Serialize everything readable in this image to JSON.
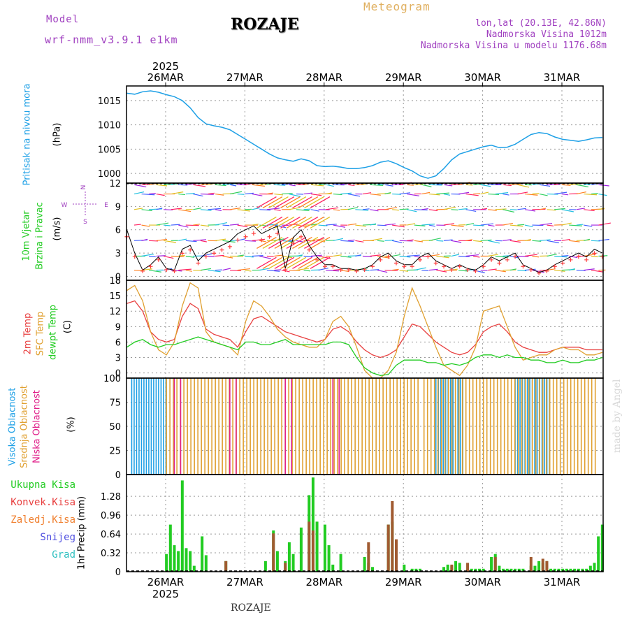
{
  "header": {
    "model_label": "Model",
    "model_name": "wrf-nmm_v3.9.1 e1km",
    "station": "ROZAJE",
    "product": "Meteogram",
    "lonlat": "lon,lat (20.13E, 42.86N)",
    "alt": "Nadmorska Visina 1012m",
    "alt_model": "Nadmorska Visina u modelu 1176.68m",
    "footer_station": "ROZAJE",
    "credit": "made by Angel"
  },
  "colors": {
    "pressure": "#1ea0e6",
    "wind_label": "#22cc22",
    "temp2m": "#e84040",
    "sfc": "#e0a030",
    "dew": "#22cc22",
    "cloud_high": "#1ea0e6",
    "cloud_mid": "#e0a030",
    "cloud_low": "#e0208a",
    "precip_total": "#22cc22",
    "precip_conv": "#a05a30",
    "header_purple": "#a040c0",
    "header_gold": "#e0b060"
  },
  "labels": {
    "year": "2025",
    "dates": [
      "26MAR",
      "27MAR",
      "28MAR",
      "29MAR",
      "30MAR",
      "31MAR"
    ],
    "pressure_title": "Pritisak na nivou mora",
    "pressure_unit": "(hPa)",
    "wind_title1": "10m Vjetar",
    "wind_title2": "Brzina i Pravac",
    "wind_unit": "(m/s)",
    "compass_n": "N",
    "compass_w": "W",
    "compass_e": "E",
    "compass_s": "S",
    "temp_title1": "2m Temp",
    "temp_title2": "SFC Temp",
    "temp_title3": "dewpt Temp",
    "temp_unit": "(C)",
    "cloud_title1": "Visoka Oblacnost",
    "cloud_title2": "Srednja Oblacnost",
    "cloud_title3": "Niska Oblacnost",
    "cloud_unit": "(%)",
    "precip_title": "1hr Precip (mm)",
    "legend": [
      "Ukupna Kisa",
      "Konvek.Kisa",
      "Zaledj.Kisa",
      "Snijeg",
      "Grad"
    ]
  },
  "chart_data": [
    {
      "type": "line",
      "name": "pressure",
      "ylim": [
        998,
        1018
      ],
      "yticks": [
        1000,
        1005,
        1010,
        1015
      ],
      "x": [
        0,
        0.1,
        0.2,
        0.3,
        0.4,
        0.5,
        0.6,
        0.7,
        0.8,
        0.9,
        1,
        1.1,
        1.2,
        1.3,
        1.4,
        1.5,
        1.6,
        1.7,
        1.8,
        1.9,
        2,
        2.1,
        2.2,
        2.3,
        2.4,
        2.5,
        2.6,
        2.7,
        2.8,
        2.9,
        3,
        3.1,
        3.2,
        3.3,
        3.4,
        3.5,
        3.6,
        3.7,
        3.8,
        3.9,
        4,
        4.1,
        4.2,
        4.3,
        4.4,
        4.5,
        4.6,
        4.7,
        4.8,
        4.9,
        5,
        5.1,
        5.2,
        5.3,
        5.4,
        5.5,
        5.6,
        5.7,
        5.8,
        5.9,
        6
      ],
      "values": [
        1016.5,
        1016.3,
        1016.8,
        1017.0,
        1016.7,
        1016.2,
        1015.8,
        1015.0,
        1013.5,
        1011.5,
        1010.2,
        1009.8,
        1009.5,
        1009.0,
        1008.0,
        1007.0,
        1006.0,
        1005.0,
        1004.0,
        1003.2,
        1002.8,
        1002.5,
        1003.0,
        1002.6,
        1001.6,
        1001.4,
        1001.5,
        1001.3,
        1001.0,
        1001.0,
        1001.2,
        1001.6,
        1002.3,
        1002.6,
        1002.0,
        1001.2,
        1000.5,
        999.5,
        999.0,
        999.5,
        1001.0,
        1002.8,
        1004.0,
        1004.5,
        1005.0,
        1005.5,
        1005.8,
        1005.3,
        1005.4,
        1006.0,
        1007.0,
        1008.0,
        1008.4,
        1008.2,
        1007.5,
        1007.0,
        1006.8,
        1006.6,
        1006.9,
        1007.3,
        1007.4
      ]
    },
    {
      "type": "line",
      "name": "wind",
      "ylim": [
        -0.5,
        12
      ],
      "yticks": [
        0,
        3,
        6,
        9,
        12
      ],
      "x": [
        0,
        0.1,
        0.2,
        0.3,
        0.4,
        0.5,
        0.6,
        0.7,
        0.8,
        0.9,
        1,
        1.1,
        1.2,
        1.3,
        1.4,
        1.5,
        1.6,
        1.7,
        1.8,
        1.9,
        2,
        2.1,
        2.2,
        2.3,
        2.4,
        2.5,
        2.6,
        2.7,
        2.8,
        2.9,
        3,
        3.1,
        3.2,
        3.3,
        3.4,
        3.5,
        3.6,
        3.7,
        3.8,
        3.9,
        4,
        4.1,
        4.2,
        4.3,
        4.4,
        4.5,
        4.6,
        4.7,
        4.8,
        4.9,
        5,
        5.1,
        5.2,
        5.3,
        5.4,
        5.5,
        5.6,
        5.7,
        5.8,
        5.9,
        6
      ],
      "values": [
        6.0,
        3.0,
        0.8,
        1.5,
        2.5,
        1.0,
        0.8,
        3.5,
        4.0,
        2.0,
        3.0,
        3.5,
        4.0,
        4.5,
        5.5,
        6.0,
        6.5,
        5.5,
        6.0,
        6.5,
        1.0,
        5.0,
        6.0,
        4.0,
        2.5,
        1.5,
        1.5,
        1.0,
        1.0,
        0.8,
        1.0,
        1.5,
        2.5,
        3.0,
        2.0,
        1.5,
        1.5,
        2.5,
        3.0,
        2.0,
        1.5,
        1.0,
        1.5,
        1.0,
        0.8,
        1.5,
        2.5,
        2.0,
        2.5,
        3.0,
        1.5,
        1.0,
        0.5,
        0.8,
        1.5,
        2.0,
        2.5,
        3.0,
        2.5,
        3.5,
        3.0
      ]
    },
    {
      "type": "line",
      "name": "temperature",
      "ylim": [
        -1,
        18
      ],
      "yticks": [
        0,
        3,
        6,
        9,
        12,
        15,
        18
      ],
      "x": [
        0,
        0.1,
        0.2,
        0.3,
        0.4,
        0.5,
        0.6,
        0.7,
        0.8,
        0.9,
        1,
        1.1,
        1.2,
        1.3,
        1.4,
        1.5,
        1.6,
        1.7,
        1.8,
        1.9,
        2,
        2.1,
        2.2,
        2.3,
        2.4,
        2.5,
        2.6,
        2.7,
        2.8,
        2.9,
        3,
        3.1,
        3.2,
        3.3,
        3.4,
        3.5,
        3.6,
        3.7,
        3.8,
        3.9,
        4,
        4.1,
        4.2,
        4.3,
        4.4,
        4.5,
        4.6,
        4.7,
        4.8,
        4.9,
        5,
        5.1,
        5.2,
        5.3,
        5.4,
        5.5,
        5.6,
        5.7,
        5.8,
        5.9,
        6
      ],
      "series": [
        {
          "name": "2m Temp",
          "color_key": "temp2m",
          "values": [
            13.5,
            14.0,
            12.0,
            8.0,
            6.5,
            6.0,
            6.5,
            11.0,
            13.5,
            12.5,
            8.5,
            7.5,
            7.0,
            6.5,
            5.0,
            8.0,
            10.5,
            11.0,
            10.0,
            9.0,
            8.0,
            7.5,
            7.0,
            6.5,
            6.0,
            6.5,
            8.5,
            9.0,
            8.0,
            6.0,
            4.5,
            3.5,
            3.0,
            3.5,
            4.5,
            7.0,
            9.5,
            9.0,
            7.5,
            6.0,
            5.0,
            4.0,
            3.5,
            4.0,
            5.5,
            8.0,
            9.0,
            9.5,
            8.0,
            6.0,
            5.0,
            4.5,
            4.0,
            4.0,
            4.5,
            5.0,
            5.0,
            5.0,
            4.5,
            4.5,
            4.5
          ]
        },
        {
          "name": "SFC Temp",
          "color_key": "sfc",
          "values": [
            16.0,
            17.0,
            14.0,
            8.0,
            4.5,
            3.5,
            6.0,
            13.0,
            17.5,
            16.5,
            8.0,
            6.0,
            5.5,
            5.0,
            3.5,
            10.0,
            14.0,
            13.0,
            11.0,
            8.5,
            7.0,
            6.0,
            5.5,
            5.0,
            5.0,
            6.5,
            10.0,
            11.0,
            9.0,
            5.0,
            0.5,
            -1.0,
            -1.0,
            0.5,
            4.0,
            11.0,
            16.5,
            13.0,
            9.0,
            5.0,
            1.5,
            0.5,
            -0.5,
            1.5,
            5.0,
            12.0,
            12.5,
            13.0,
            9.0,
            5.0,
            2.5,
            3.0,
            3.5,
            3.5,
            4.5,
            5.0,
            4.5,
            4.5,
            3.5,
            3.5,
            4.0
          ]
        },
        {
          "name": "dewpt Temp",
          "color_key": "dew",
          "values": [
            5.0,
            6.0,
            6.5,
            5.5,
            5.0,
            5.5,
            5.5,
            6.0,
            6.5,
            7.0,
            6.5,
            6.0,
            5.5,
            5.0,
            4.5,
            6.0,
            6.0,
            5.5,
            5.5,
            6.0,
            6.5,
            5.5,
            5.5,
            5.5,
            5.5,
            5.5,
            6.0,
            6.0,
            5.5,
            3.0,
            1.0,
            0.0,
            -0.5,
            -0.3,
            1.5,
            2.5,
            2.5,
            2.5,
            2.0,
            2.0,
            1.5,
            1.8,
            1.5,
            2.0,
            3.0,
            3.5,
            3.5,
            3.0,
            3.5,
            3.0,
            3.0,
            2.5,
            2.5,
            2.0,
            2.0,
            2.5,
            2.0,
            2.0,
            2.5,
            2.5,
            3.0
          ]
        }
      ]
    },
    {
      "type": "bar",
      "name": "cloud_cover",
      "ylim": [
        0,
        100
      ],
      "yticks": [
        0,
        25,
        50,
        75,
        100
      ],
      "series": [
        {
          "name": "Visoka Oblacnost",
          "color_key": "cloud_high",
          "segments": [
            [
              0.0,
              0.5
            ],
            [
              3.9,
              4.25
            ],
            [
              4.9,
              5.35
            ]
          ]
        },
        {
          "name": "Srednja Oblacnost",
          "color_key": "cloud_mid",
          "segments": [
            [
              0.5,
              3.7
            ],
            [
              3.75,
              5.95
            ]
          ]
        },
        {
          "name": "Niska Oblacnost",
          "color_key": "cloud_low",
          "segments": [
            [
              0.6,
              0.7
            ],
            [
              1.3,
              1.4
            ],
            [
              2.0,
              2.1
            ],
            [
              2.6,
              2.7
            ]
          ]
        }
      ]
    },
    {
      "type": "bar",
      "name": "precip",
      "ylim": [
        0,
        1.65
      ],
      "yticks": [
        0,
        0.32,
        0.64,
        0.96,
        1.28
      ],
      "series": [
        {
          "name": "Ukupna Kisa",
          "color_key": "precip_total",
          "x": [
            0.5,
            0.55,
            0.6,
            0.65,
            0.7,
            0.75,
            0.8,
            0.85,
            0.95,
            1.0,
            1.25,
            1.75,
            1.85,
            1.9,
            2.0,
            2.05,
            2.1,
            2.2,
            2.3,
            2.35,
            2.4,
            2.5,
            2.55,
            2.6,
            2.7,
            3.0,
            3.05,
            3.1,
            3.3,
            3.35,
            3.4,
            3.5,
            3.6,
            3.65,
            3.7,
            4.0,
            4.05,
            4.1,
            4.15,
            4.2,
            4.3,
            4.35,
            4.4,
            4.45,
            4.5,
            4.6,
            4.65,
            4.7,
            4.75,
            4.8,
            4.85,
            4.9,
            4.95,
            5.0,
            5.1,
            5.15,
            5.2,
            5.25,
            5.3,
            5.35,
            5.4,
            5.45,
            5.5,
            5.55,
            5.6,
            5.65,
            5.7,
            5.75,
            5.8,
            5.85,
            5.9,
            5.95,
            6.0
          ],
          "values": [
            0.3,
            0.8,
            0.45,
            0.35,
            1.55,
            0.4,
            0.35,
            0.1,
            0.6,
            0.28,
            0.18,
            0.18,
            0.7,
            0.35,
            0.18,
            0.5,
            0.3,
            0.75,
            1.3,
            1.6,
            0.85,
            0.8,
            0.45,
            0.12,
            0.3,
            0.25,
            0.15,
            0.08,
            0.8,
            0.85,
            0.1,
            0.12,
            0.05,
            0.05,
            0.05,
            0.08,
            0.12,
            0.1,
            0.18,
            0.15,
            0.05,
            0.05,
            0.05,
            0.05,
            0.05,
            0.25,
            0.3,
            0.1,
            0.05,
            0.05,
            0.05,
            0.05,
            0.05,
            0.05,
            0.1,
            0.1,
            0.18,
            0.15,
            0.18,
            0.05,
            0.05,
            0.05,
            0.05,
            0.05,
            0.05,
            0.05,
            0.05,
            0.05,
            0.05,
            0.1,
            0.15,
            0.6,
            0.8
          ]
        },
        {
          "name": "Konvek.Kisa",
          "color_key": "precip_conv",
          "x": [
            1.25,
            1.85,
            2.0,
            2.3,
            2.35,
            3.05,
            3.3,
            3.35,
            3.4,
            4.1,
            4.3,
            4.65,
            5.1,
            5.25,
            5.3
          ],
          "values": [
            0.18,
            0.65,
            0.15,
            0.85,
            0.7,
            0.5,
            0.8,
            1.2,
            0.55,
            0.12,
            0.15,
            0.25,
            0.25,
            0.22,
            0.18
          ]
        }
      ]
    }
  ]
}
